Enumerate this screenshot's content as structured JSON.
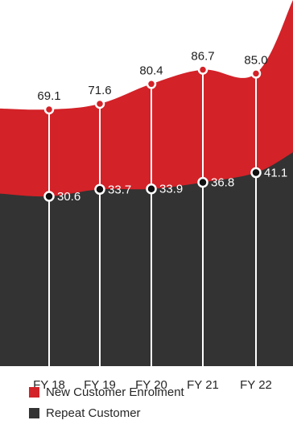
{
  "chart_data": {
    "type": "area",
    "categories": [
      "FY 18",
      "FY 19",
      "FY 20",
      "FY 21",
      "FY 22"
    ],
    "series": [
      {
        "name": "New Customer Enrolment",
        "values": [
          69.1,
          71.6,
          80.4,
          86.7,
          85.0
        ],
        "labels": [
          "69.1",
          "71.6",
          "80.4",
          "86.7",
          "85.0"
        ],
        "color": "#d32228"
      },
      {
        "name": "Repeat Customer",
        "values": [
          30.6,
          33.7,
          33.9,
          36.8,
          41.1
        ],
        "labels": [
          "30.6",
          "33.7",
          "33.9",
          "36.8",
          "41.1"
        ],
        "color": "#333333"
      }
    ],
    "legend_position": "bottom-left",
    "grid": false,
    "ylim": [
      0,
      100
    ]
  }
}
